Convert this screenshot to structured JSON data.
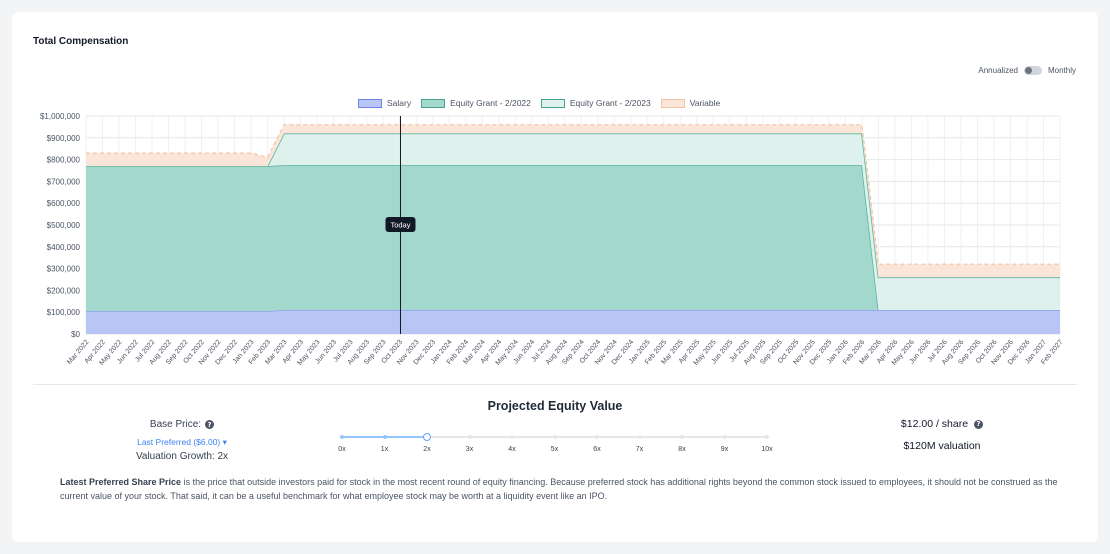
{
  "card": {
    "title": "Total Compensation",
    "toggle": {
      "left_label": "Annualized",
      "right_label": "Monthly",
      "state": "annualized"
    }
  },
  "chart_data": {
    "type": "area",
    "stacked": true,
    "x": [
      "Mar 2022",
      "Apr 2022",
      "May 2022",
      "Jun 2022",
      "Jul 2022",
      "Aug 2022",
      "Sep 2022",
      "Oct 2022",
      "Nov 2022",
      "Dec 2022",
      "Jan 2023",
      "Feb 2023",
      "Mar 2023",
      "Apr 2023",
      "May 2023",
      "Jun 2023",
      "Jul 2023",
      "Aug 2023",
      "Sep 2023",
      "Oct 2023",
      "Nov 2023",
      "Dec 2023",
      "Jan 2024",
      "Feb 2024",
      "Mar 2024",
      "Apr 2024",
      "May 2024",
      "Jun 2024",
      "Jul 2024",
      "Aug 2024",
      "Sep 2024",
      "Oct 2024",
      "Nov 2024",
      "Dec 2024",
      "Jan 2025",
      "Feb 2025",
      "Mar 2025",
      "Apr 2025",
      "May 2025",
      "Jun 2025",
      "Jul 2025",
      "Aug 2025",
      "Sep 2025",
      "Oct 2025",
      "Nov 2025",
      "Dec 2025",
      "Jan 2026",
      "Feb 2026",
      "Mar 2026",
      "Apr 2026",
      "May 2026",
      "Jun 2026",
      "Jul 2026",
      "Aug 2026",
      "Sep 2026",
      "Oct 2026",
      "Nov 2026",
      "Dec 2026",
      "Jan 2027",
      "Feb 2027"
    ],
    "ylim": [
      0,
      1000000
    ],
    "yticks": [
      "$0",
      "$100,000",
      "$200,000",
      "$300,000",
      "$400,000",
      "$500,000",
      "$600,000",
      "$700,000",
      "$800,000",
      "$900,000",
      "$1,000,000"
    ],
    "grid": true,
    "legend_position": "top",
    "marker": {
      "label": "Today",
      "x": "Nov 2023"
    },
    "series": [
      {
        "name": "Salary",
        "color": "#8ea2ef",
        "fill": "#b9c5f5",
        "values": [
          105000,
          105000,
          105000,
          105000,
          105000,
          105000,
          105000,
          105000,
          105000,
          105000,
          105000,
          105000,
          110000,
          110000,
          110000,
          110000,
          110000,
          110000,
          110000,
          110000,
          110000,
          110000,
          110000,
          110000,
          110000,
          110000,
          110000,
          110000,
          110000,
          110000,
          110000,
          110000,
          110000,
          110000,
          110000,
          110000,
          110000,
          110000,
          110000,
          110000,
          110000,
          110000,
          110000,
          110000,
          110000,
          110000,
          110000,
          110000,
          110000,
          110000,
          110000,
          110000,
          110000,
          110000,
          110000,
          110000,
          110000,
          110000,
          110000,
          110000
        ]
      },
      {
        "name": "Equity Grant - 2/2022",
        "color": "#5bb5a0",
        "fill": "#a3d8cc",
        "values": [
          665000,
          665000,
          665000,
          665000,
          665000,
          665000,
          665000,
          665000,
          665000,
          665000,
          665000,
          665000,
          665000,
          665000,
          665000,
          665000,
          665000,
          665000,
          665000,
          665000,
          665000,
          665000,
          665000,
          665000,
          665000,
          665000,
          665000,
          665000,
          665000,
          665000,
          665000,
          665000,
          665000,
          665000,
          665000,
          665000,
          665000,
          665000,
          665000,
          665000,
          665000,
          665000,
          665000,
          665000,
          665000,
          665000,
          665000,
          665000,
          0,
          0,
          0,
          0,
          0,
          0,
          0,
          0,
          0,
          0,
          0,
          0
        ]
      },
      {
        "name": "Equity Grant - 2/2023",
        "color": "#5bb5a0",
        "fill": "#dff1ec",
        "values": [
          0,
          0,
          0,
          0,
          0,
          0,
          0,
          0,
          0,
          0,
          0,
          0,
          145000,
          145000,
          145000,
          145000,
          145000,
          145000,
          145000,
          145000,
          145000,
          145000,
          145000,
          145000,
          145000,
          145000,
          145000,
          145000,
          145000,
          145000,
          145000,
          145000,
          145000,
          145000,
          145000,
          145000,
          145000,
          145000,
          145000,
          145000,
          145000,
          145000,
          145000,
          145000,
          145000,
          145000,
          145000,
          145000,
          150000,
          150000,
          150000,
          150000,
          150000,
          150000,
          150000,
          150000,
          150000,
          150000,
          150000,
          150000
        ]
      },
      {
        "name": "Variable",
        "color": "#f1c4a6",
        "fill": "#fbe5d8",
        "values": [
          60000,
          60000,
          60000,
          60000,
          60000,
          60000,
          60000,
          60000,
          60000,
          60000,
          60000,
          40000,
          40000,
          40000,
          40000,
          40000,
          40000,
          40000,
          40000,
          40000,
          40000,
          40000,
          40000,
          40000,
          40000,
          40000,
          40000,
          40000,
          40000,
          40000,
          40000,
          40000,
          40000,
          40000,
          40000,
          40000,
          40000,
          40000,
          40000,
          40000,
          40000,
          40000,
          40000,
          40000,
          40000,
          40000,
          40000,
          40000,
          60000,
          60000,
          60000,
          60000,
          60000,
          60000,
          60000,
          60000,
          60000,
          60000,
          60000,
          60000
        ]
      }
    ]
  },
  "projection": {
    "title": "Projected Equity Value",
    "base_price_label": "Base Price:",
    "base_price_select": "Last Preferred ($6.00)",
    "valuation_growth": "Valuation Growth: 2x",
    "multipliers": [
      "0x",
      "1x",
      "2x",
      "3x",
      "4x",
      "5x",
      "6x",
      "7x",
      "8x",
      "9x",
      "10x"
    ],
    "selected_multiplier": "2x",
    "share_price": "$12.00 / share",
    "valuation": "$120M valuation"
  },
  "note": {
    "bold": "Latest Preferred Share Price",
    "text": " is the price that outside investors paid for stock in the most recent round of equity financing. Because preferred stock has additional rights beyond the common stock issued to employees, it should not be construed as the current value of your stock. That said, it can be a useful benchmark for what employee stock may be worth at a liquidity event like an IPO."
  }
}
